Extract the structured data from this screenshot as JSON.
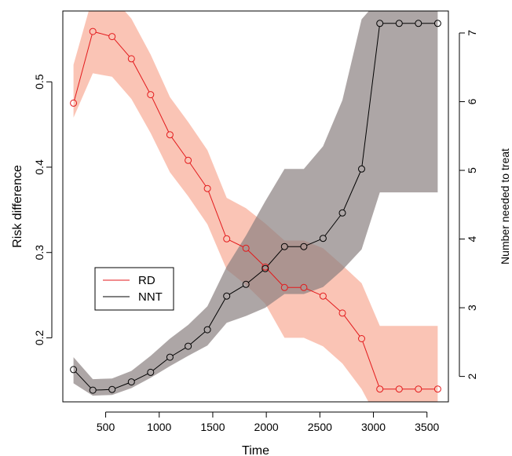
{
  "chart_data": {
    "type": "line",
    "xlabel": "Time",
    "ylabel_left": "Risk difference",
    "ylabel_right": "Number needed to treat",
    "x_ticks": [
      500,
      1000,
      1500,
      2000,
      2500,
      3000,
      3500
    ],
    "x_tick_labels": [
      "500",
      "1000",
      "1500",
      "2000",
      "2500",
      "3000",
      "3500"
    ],
    "y_left_ticks": [
      0.2,
      0.3,
      0.4,
      0.5
    ],
    "y_left_tick_labels": [
      "0.2",
      "0.3",
      "0.4",
      "0.5"
    ],
    "y_right_ticks": [
      2,
      3,
      4,
      5,
      6,
      7
    ],
    "y_right_tick_labels": [
      "2",
      "3",
      "4",
      "5",
      "6",
      "7"
    ],
    "xlim": [
      100,
      3700
    ],
    "ylim_left": [
      0.125,
      0.583
    ],
    "ylim_right": [
      1.63,
      7.32
    ],
    "legend_position": "left-center",
    "x": [
      200,
      380,
      560,
      740,
      920,
      1100,
      1270,
      1450,
      1630,
      1810,
      1990,
      2170,
      2350,
      2530,
      2710,
      2890,
      3060,
      3240,
      3420,
      3600
    ],
    "series": [
      {
        "name": "RD",
        "axis": "left",
        "color": "#e31a1c",
        "band_color": "#f8b4a0",
        "values": [
          0.475,
          0.559,
          0.553,
          0.527,
          0.485,
          0.438,
          0.408,
          0.375,
          0.316,
          0.305,
          0.283,
          0.259,
          0.259,
          0.249,
          0.229,
          0.199,
          0.14,
          0.14,
          0.14,
          0.14
        ],
        "lower": [
          0.458,
          0.51,
          0.506,
          0.48,
          0.44,
          0.394,
          0.366,
          0.333,
          0.28,
          0.262,
          0.24,
          0.2,
          0.2,
          0.19,
          0.17,
          0.14,
          0.1,
          0.1,
          0.1,
          0.1
        ],
        "upper": [
          0.52,
          0.6,
          0.6,
          0.574,
          0.532,
          0.482,
          0.453,
          0.42,
          0.364,
          0.352,
          0.334,
          0.314,
          0.314,
          0.305,
          0.285,
          0.264,
          0.214,
          0.214,
          0.214,
          0.214
        ]
      },
      {
        "name": "NNT",
        "axis": "right",
        "color": "#000000",
        "band_color": "#8a8080",
        "values": [
          2.1,
          1.8,
          1.81,
          1.92,
          2.06,
          2.28,
          2.44,
          2.68,
          3.17,
          3.34,
          3.57,
          3.89,
          3.89,
          4.01,
          4.38,
          5.02,
          7.14,
          7.14,
          7.14,
          7.14
        ],
        "lower": [
          1.9,
          1.72,
          1.73,
          1.83,
          1.98,
          2.15,
          2.3,
          2.45,
          2.78,
          2.88,
          3.0,
          3.2,
          3.2,
          3.3,
          3.55,
          3.85,
          4.68,
          4.68,
          4.68,
          4.68
        ],
        "upper": [
          2.28,
          1.96,
          1.97,
          2.08,
          2.3,
          2.55,
          2.75,
          3.02,
          3.6,
          4.05,
          4.55,
          5.02,
          5.02,
          5.35,
          6.02,
          7.2,
          7.5,
          7.5,
          7.5,
          7.5
        ]
      }
    ]
  }
}
